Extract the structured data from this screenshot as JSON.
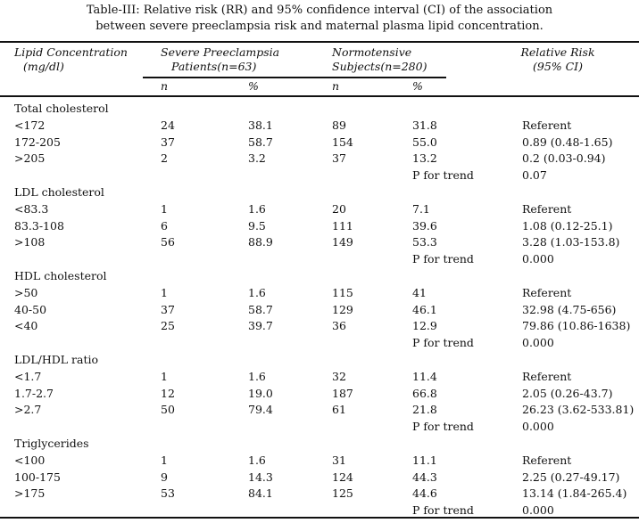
{
  "caption": {
    "line1": "Table-III: Relative risk (RR) and 95% confidence interval (CI) of the association",
    "line2": "between severe preeclampsia risk and maternal plasma lipid concentration."
  },
  "header": {
    "lipid_line1": "Lipid Concentration",
    "lipid_line2": "(mg/dl)",
    "severe_line1": "Severe Preeclampsia",
    "severe_line2": "Patients(n=63)",
    "normo_line1": "Normotensive",
    "normo_line2": "Subjects(n=280)",
    "rr_line1": "Relative Risk",
    "rr_line2": "(95% CI)",
    "n1": "n",
    "pct1": "%",
    "n2": "n",
    "pct2": "%"
  },
  "groups": [
    {
      "name": "Total cholesterol",
      "rows": [
        [
          "<172",
          "24",
          "38.1",
          "89",
          "31.8",
          "Referent"
        ],
        [
          "172-205",
          "37",
          "58.7",
          "154",
          "55.0",
          "0.89 (0.48-1.65)"
        ],
        [
          ">205",
          "2",
          "3.2",
          "37",
          "13.2",
          "0.2 (0.03-0.94)"
        ]
      ],
      "trend_label": "P for trend",
      "trend": "0.07"
    },
    {
      "name": "LDL cholesterol",
      "rows": [
        [
          "<83.3",
          "1",
          "1.6",
          "20",
          "7.1",
          "Referent"
        ],
        [
          "83.3-108",
          "6",
          "9.5",
          "111",
          "39.6",
          "1.08 (0.12-25.1)"
        ],
        [
          ">108",
          "56",
          "88.9",
          "149",
          "53.3",
          "3.28 (1.03-153.8)"
        ]
      ],
      "trend_label": "P for trend",
      "trend": "0.000"
    },
    {
      "name": "HDL cholesterol",
      "rows": [
        [
          ">50",
          "1",
          "1.6",
          "115",
          "41",
          "Referent"
        ],
        [
          "40-50",
          "37",
          "58.7",
          "129",
          "46.1",
          "32.98 (4.75-656)"
        ],
        [
          "<40",
          "25",
          "39.7",
          "36",
          "12.9",
          "79.86 (10.86-1638)"
        ]
      ],
      "trend_label": "P for trend",
      "trend": "0.000"
    },
    {
      "name": "LDL/HDL ratio",
      "rows": [
        [
          "<1.7",
          "1",
          "1.6",
          "32",
          "11.4",
          "Referent"
        ],
        [
          "1.7-2.7",
          "12",
          "19.0",
          "187",
          "66.8",
          "2.05 (0.26-43.7)"
        ],
        [
          ">2.7",
          "50",
          "79.4",
          "61",
          "21.8",
          "26.23 (3.62-533.81)"
        ]
      ],
      "trend_label": "P for trend",
      "trend": "0.000"
    },
    {
      "name": "Triglycerides",
      "rows": [
        [
          "<100",
          "1",
          "1.6",
          "31",
          "11.1",
          "Referent"
        ],
        [
          "100-175",
          "9",
          "14.3",
          "124",
          "44.3",
          "2.25 (0.27-49.17)"
        ],
        [
          ">175",
          "53",
          "84.1",
          "125",
          "44.6",
          "13.14 (1.84-265.4)"
        ]
      ],
      "trend_label": "P for trend",
      "trend": "0.000"
    }
  ]
}
